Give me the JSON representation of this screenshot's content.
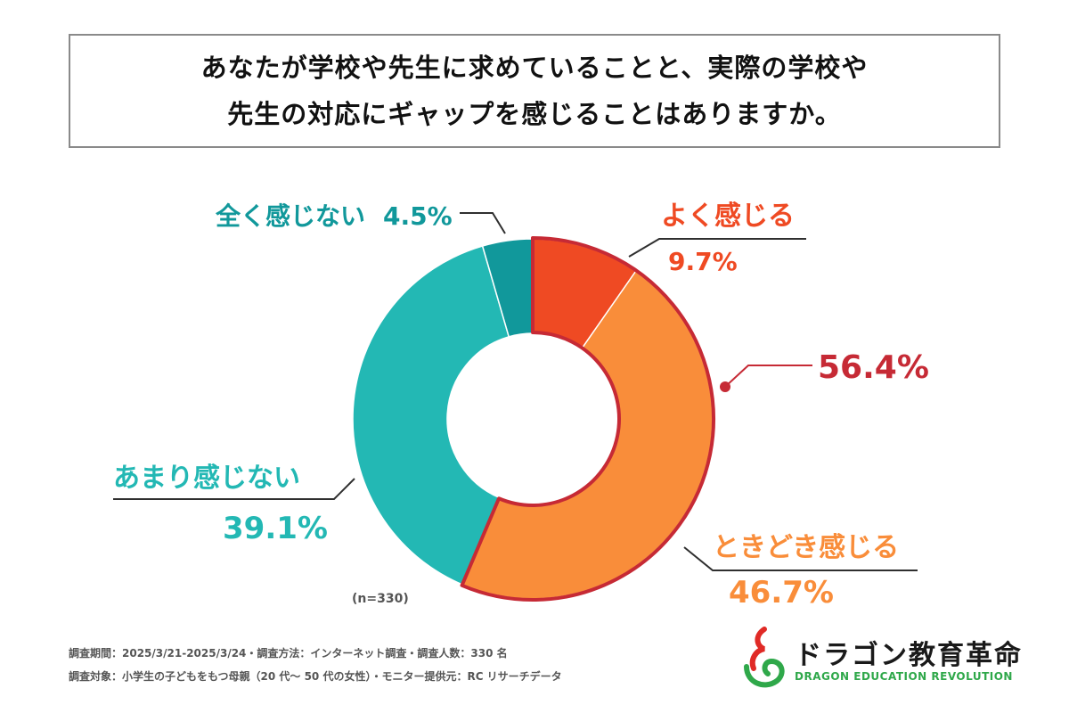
{
  "title": {
    "line1": "あなたが学校や先生に求めていることと、実際の学校や",
    "line2": "先生の対応にギャップを感じることはありますか。"
  },
  "chart_data": {
    "type": "pie",
    "donut": true,
    "categories": [
      "よく感じる",
      "ときどき感じる",
      "あまり感じない",
      "全く感じない"
    ],
    "values": [
      9.7,
      46.7,
      39.1,
      4.5
    ],
    "value_labels": [
      "9.7%",
      "46.7%",
      "39.1%",
      "4.5%"
    ],
    "colors": [
      "#ef4a23",
      "#f98d3a",
      "#23b8b4",
      "#11989b"
    ],
    "highlight": {
      "label": "56.4%",
      "segments": [
        0,
        1
      ],
      "color": "#c62a35"
    },
    "sample_note": "(n=330)",
    "title": "",
    "legend": "none"
  },
  "footer": {
    "line1": "調査期間：2025/3/21-2025/3/24・調査方法：インターネット調査・調査人数：330 名",
    "line2": "調査対象：小学生の子どもをもつ母親（20 代～ 50 代の女性）・モニター提供元：RC リサーチデータ"
  },
  "logo": {
    "name": "ドラゴン教育革命",
    "sub": "DRAGON EDUCATION REVOLUTION",
    "colors": {
      "red": "#e02a26",
      "green": "#2fa84a"
    }
  }
}
